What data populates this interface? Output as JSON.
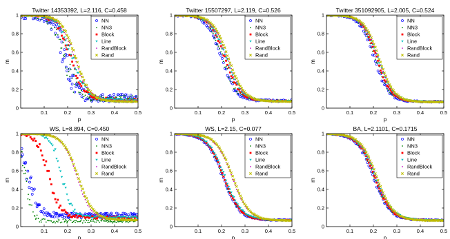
{
  "figure": {
    "layout": "2 rows x 3 columns of scatter plots"
  },
  "chart_data": [
    {
      "type": "scatter",
      "title": "Twitter 14353392, L=2.116, C=0.458",
      "xlabel": "p",
      "ylabel": "m",
      "xlim": [
        0,
        0.5
      ],
      "ylim": [
        0,
        1
      ],
      "xticks": [
        "0.1",
        "0.2",
        "0.3",
        "0.4",
        "0.5"
      ],
      "yticks": [
        "0",
        "0.2",
        "0.4",
        "0.6",
        "0.8",
        "1"
      ],
      "legend_position": "top-right",
      "series": [
        {
          "name": "NN",
          "color": "#0000ff",
          "marker": "circle",
          "pc": 0.185,
          "s": 0.025,
          "tail": 0.11,
          "noise": 0.12
        },
        {
          "name": "NN3",
          "color": "#008000",
          "marker": "dot",
          "pc": 0.19,
          "s": 0.025,
          "tail": 0.1,
          "noise": 0.1
        },
        {
          "name": "Block",
          "color": "#ff0000",
          "marker": "square",
          "pc": 0.215,
          "s": 0.03,
          "tail": 0.09,
          "noise": 0.04
        },
        {
          "name": "Line",
          "color": "#00bfbf",
          "marker": "triangle",
          "pc": 0.22,
          "s": 0.03,
          "tail": 0.09,
          "noise": 0.03
        },
        {
          "name": "RandBlock",
          "color": "#bf00bf",
          "marker": "dot",
          "pc": 0.23,
          "s": 0.03,
          "tail": 0.08,
          "noise": 0.02
        },
        {
          "name": "Rand",
          "color": "#bfbf00",
          "marker": "x",
          "pc": 0.235,
          "s": 0.03,
          "tail": 0.07,
          "noise": 0.01
        }
      ]
    },
    {
      "type": "scatter",
      "title": "Twitter 15507297, L=2.119, C=0.526",
      "xlabel": "p",
      "ylabel": "m",
      "xlim": [
        0,
        0.5
      ],
      "ylim": [
        0,
        1
      ],
      "xticks": [
        "0.1",
        "0.2",
        "0.3",
        "0.4",
        "0.5"
      ],
      "yticks": [
        "0",
        "0.2",
        "0.4",
        "0.6",
        "0.8",
        "1"
      ],
      "legend_position": "top-right",
      "series": [
        {
          "name": "NN",
          "color": "#0000ff",
          "marker": "circle",
          "pc": 0.2,
          "s": 0.03,
          "tail": 0.08,
          "noise": 0.03
        },
        {
          "name": "NN3",
          "color": "#008000",
          "marker": "dot",
          "pc": 0.205,
          "s": 0.03,
          "tail": 0.08,
          "noise": 0.03
        },
        {
          "name": "Block",
          "color": "#ff0000",
          "marker": "square",
          "pc": 0.215,
          "s": 0.032,
          "tail": 0.075,
          "noise": 0.015
        },
        {
          "name": "Line",
          "color": "#00bfbf",
          "marker": "triangle",
          "pc": 0.22,
          "s": 0.033,
          "tail": 0.075,
          "noise": 0.015
        },
        {
          "name": "RandBlock",
          "color": "#bf00bf",
          "marker": "dot",
          "pc": 0.225,
          "s": 0.033,
          "tail": 0.07,
          "noise": 0.01
        },
        {
          "name": "Rand",
          "color": "#bfbf00",
          "marker": "x",
          "pc": 0.23,
          "s": 0.033,
          "tail": 0.07,
          "noise": 0.005
        }
      ]
    },
    {
      "type": "scatter",
      "title": "Twitter 351092905, L=2.005, C=0.524",
      "xlabel": "p",
      "ylabel": "m",
      "xlim": [
        0,
        0.5
      ],
      "ylim": [
        0,
        1
      ],
      "xticks": [
        "0.1",
        "0.2",
        "0.3",
        "0.4",
        "0.5"
      ],
      "yticks": [
        "0",
        "0.2",
        "0.4",
        "0.6",
        "0.8",
        "1"
      ],
      "legend_position": "top-right",
      "series": [
        {
          "name": "NN",
          "color": "#0000ff",
          "marker": "circle",
          "pc": 0.205,
          "s": 0.03,
          "tail": 0.07,
          "noise": 0.02
        },
        {
          "name": "NN3",
          "color": "#008000",
          "marker": "dot",
          "pc": 0.21,
          "s": 0.03,
          "tail": 0.07,
          "noise": 0.02
        },
        {
          "name": "Block",
          "color": "#ff0000",
          "marker": "square",
          "pc": 0.215,
          "s": 0.03,
          "tail": 0.07,
          "noise": 0.01
        },
        {
          "name": "Line",
          "color": "#00bfbf",
          "marker": "triangle",
          "pc": 0.22,
          "s": 0.032,
          "tail": 0.07,
          "noise": 0.01
        },
        {
          "name": "RandBlock",
          "color": "#bf00bf",
          "marker": "dot",
          "pc": 0.222,
          "s": 0.032,
          "tail": 0.065,
          "noise": 0.008
        },
        {
          "name": "Rand",
          "color": "#bfbf00",
          "marker": "x",
          "pc": 0.225,
          "s": 0.032,
          "tail": 0.065,
          "noise": 0.005
        }
      ]
    },
    {
      "type": "scatter",
      "title": "WS, L=8.894, C=0.450",
      "xlabel": "p",
      "ylabel": "m",
      "xlim": [
        0,
        0.5
      ],
      "ylim": [
        0,
        1
      ],
      "xticks": [
        "0.1",
        "0.2",
        "0.3",
        "0.4",
        "0.5"
      ],
      "yticks": [
        "0",
        "0.2",
        "0.4",
        "0.6",
        "0.8",
        "1"
      ],
      "legend_position": "top-right",
      "series": [
        {
          "name": "NN",
          "color": "#0000ff",
          "marker": "circle",
          "pc": 0.03,
          "s": 0.025,
          "tail": 0.12,
          "noise": 0.07
        },
        {
          "name": "NN3",
          "color": "#008000",
          "marker": "dot",
          "pc": 0.02,
          "s": 0.015,
          "tail": 0.06,
          "noise": 0.06
        },
        {
          "name": "Block",
          "color": "#ff0000",
          "marker": "square",
          "pc": 0.12,
          "s": 0.025,
          "tail": 0.1,
          "noise": 0.04
        },
        {
          "name": "Line",
          "color": "#00bfbf",
          "marker": "triangle",
          "pc": 0.175,
          "s": 0.022,
          "tail": 0.1,
          "noise": 0.03
        },
        {
          "name": "RandBlock",
          "color": "#bf00bf",
          "marker": "dot",
          "pc": 0.24,
          "s": 0.03,
          "tail": 0.07,
          "noise": 0.01
        },
        {
          "name": "Rand",
          "color": "#bfbf00",
          "marker": "x",
          "pc": 0.245,
          "s": 0.032,
          "tail": 0.07,
          "noise": 0.005
        }
      ]
    },
    {
      "type": "scatter",
      "title": "WS, L=2.15, C=0.077",
      "xlabel": "p",
      "ylabel": "m",
      "xlim": [
        0,
        0.5
      ],
      "ylim": [
        0,
        1
      ],
      "xticks": [
        "0.1",
        "0.2",
        "0.3",
        "0.4",
        "0.5"
      ],
      "yticks": [
        "0",
        "0.2",
        "0.4",
        "0.6",
        "0.8",
        "1"
      ],
      "legend_position": "top-right",
      "series": [
        {
          "name": "NN",
          "color": "#0000ff",
          "marker": "circle",
          "pc": 0.205,
          "s": 0.035,
          "tail": 0.07,
          "noise": 0.015
        },
        {
          "name": "NN3",
          "color": "#008000",
          "marker": "dot",
          "pc": 0.208,
          "s": 0.035,
          "tail": 0.07,
          "noise": 0.015
        },
        {
          "name": "Block",
          "color": "#ff0000",
          "marker": "square",
          "pc": 0.21,
          "s": 0.035,
          "tail": 0.07,
          "noise": 0.01
        },
        {
          "name": "Line",
          "color": "#00bfbf",
          "marker": "triangle",
          "pc": 0.215,
          "s": 0.036,
          "tail": 0.07,
          "noise": 0.01
        },
        {
          "name": "RandBlock",
          "color": "#bf00bf",
          "marker": "dot",
          "pc": 0.245,
          "s": 0.035,
          "tail": 0.065,
          "noise": 0.008
        },
        {
          "name": "Rand",
          "color": "#bfbf00",
          "marker": "x",
          "pc": 0.248,
          "s": 0.035,
          "tail": 0.065,
          "noise": 0.005
        }
      ]
    },
    {
      "type": "scatter",
      "title": "BA, L=2.1101, C=0.1715",
      "xlabel": "p",
      "ylabel": "m",
      "xlim": [
        0,
        0.5
      ],
      "ylim": [
        0,
        1
      ],
      "xticks": [
        "0.1",
        "0.2",
        "0.3",
        "0.4",
        "0.5"
      ],
      "yticks": [
        "0",
        "0.2",
        "0.4",
        "0.6",
        "0.8",
        "1"
      ],
      "legend_position": "top-right",
      "series": [
        {
          "name": "NN",
          "color": "#0000ff",
          "marker": "circle",
          "pc": 0.2,
          "s": 0.035,
          "tail": 0.07,
          "noise": 0.015
        },
        {
          "name": "NN3",
          "color": "#008000",
          "marker": "dot",
          "pc": 0.203,
          "s": 0.035,
          "tail": 0.07,
          "noise": 0.015
        },
        {
          "name": "Block",
          "color": "#ff0000",
          "marker": "square",
          "pc": 0.205,
          "s": 0.035,
          "tail": 0.07,
          "noise": 0.01
        },
        {
          "name": "Line",
          "color": "#00bfbf",
          "marker": "triangle",
          "pc": 0.21,
          "s": 0.036,
          "tail": 0.07,
          "noise": 0.01
        },
        {
          "name": "RandBlock",
          "color": "#bf00bf",
          "marker": "dot",
          "pc": 0.212,
          "s": 0.035,
          "tail": 0.065,
          "noise": 0.008
        },
        {
          "name": "Rand",
          "color": "#bfbf00",
          "marker": "x",
          "pc": 0.215,
          "s": 0.035,
          "tail": 0.065,
          "noise": 0.005
        }
      ]
    }
  ]
}
